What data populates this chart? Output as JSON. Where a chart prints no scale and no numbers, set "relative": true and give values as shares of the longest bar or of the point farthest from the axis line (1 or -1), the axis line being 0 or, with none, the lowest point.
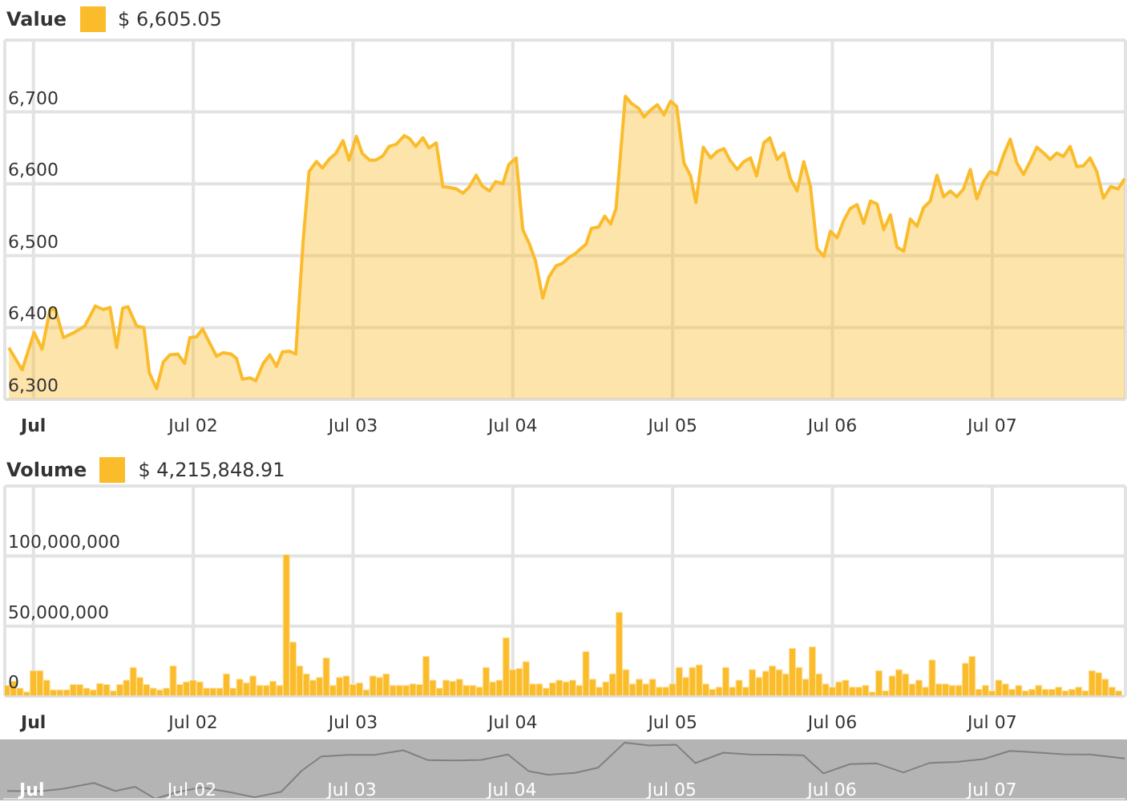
{
  "chart_data": [
    {
      "type": "area",
      "legend": "top left",
      "annotations": [
        "$ 6,605.05"
      ],
      "grid": true,
      "xlim": [
        "--06-30T19:42",
        "--07-07T20:00"
      ],
      "xticks": [
        {
          "value": "--07-01",
          "label": "Jul"
        },
        {
          "value": "--07-02",
          "label": "Jul 02"
        },
        {
          "value": "--07-03",
          "label": "Jul 03"
        },
        {
          "value": "--07-04",
          "label": "Jul 04"
        },
        {
          "value": "--07-05",
          "label": "Jul 05"
        },
        {
          "value": "--07-06",
          "label": "Jul 06"
        },
        {
          "value": "--07-07",
          "label": "Jul 07"
        }
      ],
      "ylim": [
        6300,
        6800
      ],
      "yticks": [
        {
          "value": 6300,
          "label": "6,300"
        },
        {
          "value": 6400,
          "label": "6,400"
        },
        {
          "value": 6500,
          "label": "6,500"
        },
        {
          "value": 6600,
          "label": "6,600"
        },
        {
          "value": 6700,
          "label": "6,700"
        }
      ],
      "x": [
        "--06-30T20:18",
        "--06-30T22:18",
        "--07-01T00:06",
        "--07-01T01:18",
        "--07-01T02:30",
        "--07-01T03:18",
        "--07-01T04:30",
        "--07-01T06:06",
        "--07-01T07:42",
        "--07-01T09:18",
        "--07-01T10:30",
        "--07-01T11:30",
        "--07-01T12:30",
        "--07-01T13:24",
        "--07-01T14:12",
        "--07-01T15:30",
        "--07-01T16:36",
        "--07-01T17:24",
        "--07-01T18:30",
        "--07-01T19:30",
        "--07-01T20:30",
        "--07-01T21:42",
        "--07-01T22:42",
        "--07-01T23:30",
        "--07-02T00:30",
        "--07-02T01:24",
        "--07-02T02:30",
        "--07-02T03:30",
        "--07-02T04:30",
        "--07-02T05:42",
        "--07-02T06:30",
        "--07-02T07:24",
        "--07-02T08:30",
        "--07-02T09:24",
        "--07-02T10:30",
        "--07-02T11:30",
        "--07-02T12:30",
        "--07-02T13:24",
        "--07-02T14:30",
        "--07-02T15:24",
        "--07-02T16:30",
        "--07-02T17:24",
        "--07-02T18:30",
        "--07-02T19:24",
        "--07-02T20:30",
        "--07-02T21:24",
        "--07-02T22:30",
        "--07-02T23:24",
        "--07-03T00:30",
        "--07-03T01:24",
        "--07-03T02:30",
        "--07-03T03:24",
        "--07-03T04:30",
        "--07-03T05:24",
        "--07-03T06:30",
        "--07-03T07:42",
        "--07-03T08:30",
        "--07-03T09:24",
        "--07-03T10:30",
        "--07-03T11:24",
        "--07-03T12:30",
        "--07-03T13:30",
        "--07-03T14:30",
        "--07-03T15:30",
        "--07-03T16:30",
        "--07-03T17:24",
        "--07-03T18:30",
        "--07-03T19:24",
        "--07-03T20:30",
        "--07-03T21:24",
        "--07-03T22:30",
        "--07-03T23:24",
        "--07-04T00:30",
        "--07-04T01:30",
        "--07-04T02:30",
        "--07-04T03:24",
        "--07-04T04:30",
        "--07-04T05:24",
        "--07-04T06:30",
        "--07-04T07:24",
        "--07-04T08:30",
        "--07-04T09:24",
        "--07-04T10:06",
        "--07-04T11:00",
        "--07-04T11:48",
        "--07-04T12:54",
        "--07-04T13:48",
        "--07-04T14:42",
        "--07-04T15:30",
        "--07-04T16:54",
        "--07-04T17:48",
        "--07-04T18:54",
        "--07-04T19:42",
        "--07-04T20:36",
        "--07-04T21:42",
        "--07-04T22:42",
        "--07-04T23:42",
        "--07-05T00:36",
        "--07-05T01:42",
        "--07-05T02:42",
        "--07-05T03:30",
        "--07-05T04:36",
        "--07-05T05:42",
        "--07-05T06:42",
        "--07-05T07:42",
        "--07-05T08:36",
        "--07-05T09:42",
        "--07-05T10:42",
        "--07-05T11:42",
        "--07-05T12:36",
        "--07-05T13:42",
        "--07-05T14:36",
        "--07-05T15:42",
        "--07-05T16:42",
        "--07-05T17:42",
        "--07-05T18:42",
        "--07-05T19:42",
        "--07-05T20:42",
        "--07-05T21:42",
        "--07-05T22:42",
        "--07-05T23:42",
        "--07-06T00:42",
        "--07-06T01:42",
        "--07-06T02:42",
        "--07-06T03:42",
        "--07-06T04:42",
        "--07-06T05:42",
        "--07-06T06:42",
        "--07-06T07:42",
        "--07-06T08:42",
        "--07-06T09:42",
        "--07-06T10:42",
        "--07-06T11:42",
        "--07-06T12:42",
        "--07-06T13:42",
        "--07-06T14:42",
        "--07-06T15:42",
        "--07-06T16:42",
        "--07-06T17:42",
        "--07-06T18:42",
        "--07-06T19:42",
        "--07-06T20:42",
        "--07-06T21:42",
        "--07-06T22:42",
        "--07-06T23:42",
        "--07-07T00:42",
        "--07-07T01:42",
        "--07-07T02:42",
        "--07-07T03:42",
        "--07-07T04:42",
        "--07-07T05:42",
        "--07-07T06:42",
        "--07-07T07:42",
        "--07-07T08:42",
        "--07-07T09:42",
        "--07-07T10:42",
        "--07-07T11:42",
        "--07-07T12:42",
        "--07-07T13:42",
        "--07-07T14:42",
        "--07-07T15:42",
        "--07-07T16:42",
        "--07-07T17:48",
        "--07-07T18:54",
        "--07-07T19:54"
      ],
      "series": [
        {
          "name": "Value",
          "color": "#fbbc2c",
          "values": [
            6372,
            6341,
            6393,
            6370,
            6425,
            6425,
            6386,
            6393,
            6402,
            6430,
            6425,
            6428,
            6372,
            6427,
            6429,
            6402,
            6400,
            6337,
            6315,
            6352,
            6362,
            6363,
            6350,
            6386,
            6387,
            6398,
            6378,
            6360,
            6365,
            6363,
            6357,
            6328,
            6330,
            6326,
            6350,
            6362,
            6346,
            6366,
            6367,
            6363,
            6520,
            6617,
            6631,
            6622,
            6635,
            6642,
            6660,
            6633,
            6666,
            6642,
            6633,
            6633,
            6639,
            6652,
            6655,
            6667,
            6663,
            6652,
            6664,
            6650,
            6657,
            6596,
            6595,
            6593,
            6587,
            6595,
            6612,
            6597,
            6590,
            6603,
            6600,
            6627,
            6636,
            6536,
            6516,
            6493,
            6441,
            6470,
            6486,
            6489,
            6498,
            6503,
            6509,
            6516,
            6538,
            6540,
            6555,
            6544,
            6566,
            6722,
            6712,
            6705,
            6693,
            6702,
            6710,
            6696,
            6715,
            6708,
            6629,
            6611,
            6574,
            6651,
            6636,
            6645,
            6649,
            6633,
            6620,
            6631,
            6636,
            6611,
            6657,
            6664,
            6634,
            6643,
            6607,
            6590,
            6631,
            6596,
            6510,
            6499,
            6534,
            6525,
            6549,
            6566,
            6571,
            6545,
            6576,
            6572,
            6536,
            6557,
            6512,
            6506,
            6551,
            6541,
            6567,
            6576,
            6612,
            6582,
            6590,
            6582,
            6593,
            6620,
            6579,
            6603,
            6617,
            6613,
            6640,
            6662,
            6629,
            6613,
            6631,
            6651,
            6643,
            6634,
            6643,
            6638,
            6652,
            6624,
            6625,
            6636,
            6617,
            6580,
            6596,
            6593,
            6607
          ]
        }
      ]
    },
    {
      "type": "bar",
      "legend": "top left",
      "annotations": [
        "$ 4,215,848.91"
      ],
      "grid": true,
      "xlim": [
        "--06-30T19:42",
        "--07-07T20:00"
      ],
      "xticks": [
        {
          "value": "--07-01",
          "label": "Jul"
        },
        {
          "value": "--07-02",
          "label": "Jul 02"
        },
        {
          "value": "--07-03",
          "label": "Jul 03"
        },
        {
          "value": "--07-04",
          "label": "Jul 04"
        },
        {
          "value": "--07-05",
          "label": "Jul 05"
        },
        {
          "value": "--07-06",
          "label": "Jul 06"
        },
        {
          "value": "--07-07",
          "label": "Jul 07"
        }
      ],
      "ylim": [
        0,
        150000000
      ],
      "yticks": [
        {
          "value": 0,
          "label": "0"
        },
        {
          "value": 50000000,
          "label": "50,000,000"
        },
        {
          "value": 100000000,
          "label": "100,000,000"
        }
      ],
      "x": [
        "--06-30T20:00",
        "--06-30T21:00",
        "--06-30T22:00",
        "--06-30T23:00",
        "--07-01T00:00",
        "--07-01T01:00",
        "--07-01T02:00",
        "--07-01T03:00",
        "--07-01T04:00",
        "--07-01T05:00",
        "--07-01T06:00",
        "--07-01T07:00",
        "--07-01T08:00",
        "--07-01T09:00",
        "--07-01T10:00",
        "--07-01T11:00",
        "--07-01T12:00",
        "--07-01T13:00",
        "--07-01T14:00",
        "--07-01T15:00",
        "--07-01T16:00",
        "--07-01T17:00",
        "--07-01T18:00",
        "--07-01T19:00",
        "--07-01T20:00",
        "--07-01T21:00",
        "--07-01T22:00",
        "--07-01T23:00",
        "--07-02T00:00",
        "--07-02T01:00",
        "--07-02T02:00",
        "--07-02T03:00",
        "--07-02T04:00",
        "--07-02T05:00",
        "--07-02T06:00",
        "--07-02T07:00",
        "--07-02T08:00",
        "--07-02T09:00",
        "--07-02T10:00",
        "--07-02T11:00",
        "--07-02T12:00",
        "--07-02T13:00",
        "--07-02T14:00",
        "--07-02T15:00",
        "--07-02T16:00",
        "--07-02T17:00",
        "--07-02T18:00",
        "--07-02T19:00",
        "--07-02T20:00",
        "--07-02T21:00",
        "--07-02T22:00",
        "--07-02T23:00",
        "--07-03T00:00",
        "--07-03T01:00",
        "--07-03T02:00",
        "--07-03T03:00",
        "--07-03T04:00",
        "--07-03T05:00",
        "--07-03T06:00",
        "--07-03T07:00",
        "--07-03T08:00",
        "--07-03T09:00",
        "--07-03T10:00",
        "--07-03T11:00",
        "--07-03T12:00",
        "--07-03T13:00",
        "--07-03T14:00",
        "--07-03T15:00",
        "--07-03T16:00",
        "--07-03T17:00",
        "--07-03T18:00",
        "--07-03T19:00",
        "--07-03T20:00",
        "--07-03T21:00",
        "--07-03T22:00",
        "--07-03T23:00",
        "--07-04T00:00",
        "--07-04T01:00",
        "--07-04T02:00",
        "--07-04T03:00",
        "--07-04T04:00",
        "--07-04T05:00",
        "--07-04T06:00",
        "--07-04T07:00",
        "--07-04T08:00",
        "--07-04T09:00",
        "--07-04T10:00",
        "--07-04T11:00",
        "--07-04T12:00",
        "--07-04T13:00",
        "--07-04T14:00",
        "--07-04T15:00",
        "--07-04T16:00",
        "--07-04T17:00",
        "--07-04T18:00",
        "--07-04T19:00",
        "--07-04T20:00",
        "--07-04T21:00",
        "--07-04T22:00",
        "--07-04T23:00",
        "--07-05T00:00",
        "--07-05T01:00",
        "--07-05T02:00",
        "--07-05T03:00",
        "--07-05T04:00",
        "--07-05T05:00",
        "--07-05T06:00",
        "--07-05T07:00",
        "--07-05T08:00",
        "--07-05T09:00",
        "--07-05T10:00",
        "--07-05T11:00",
        "--07-05T12:00",
        "--07-05T13:00",
        "--07-05T14:00",
        "--07-05T15:00",
        "--07-05T16:00",
        "--07-05T17:00",
        "--07-05T18:00",
        "--07-05T19:00",
        "--07-05T20:00",
        "--07-05T21:00",
        "--07-05T22:00",
        "--07-05T23:00",
        "--07-06T00:00",
        "--07-06T01:00",
        "--07-06T02:00",
        "--07-06T03:00",
        "--07-06T04:00",
        "--07-06T05:00",
        "--07-06T06:00",
        "--07-06T07:00",
        "--07-06T08:00",
        "--07-06T09:00",
        "--07-06T10:00",
        "--07-06T11:00",
        "--07-06T12:00",
        "--07-06T13:00",
        "--07-06T14:00",
        "--07-06T15:00",
        "--07-06T16:00",
        "--07-06T17:00",
        "--07-06T18:00",
        "--07-06T19:00",
        "--07-06T20:00",
        "--07-06T21:00",
        "--07-06T22:00",
        "--07-06T23:00",
        "--07-07T00:00",
        "--07-07T01:00",
        "--07-07T02:00",
        "--07-07T03:00",
        "--07-07T04:00",
        "--07-07T05:00",
        "--07-07T06:00",
        "--07-07T07:00",
        "--07-07T08:00",
        "--07-07T09:00",
        "--07-07T10:00",
        "--07-07T11:00",
        "--07-07T12:00",
        "--07-07T13:00",
        "--07-07T14:00",
        "--07-07T15:00",
        "--07-07T16:00",
        "--07-07T17:00",
        "--07-07T18:00",
        "--07-07T19:00"
      ],
      "series": [
        {
          "name": "Volume",
          "color": "#fbbc2c",
          "values": [
            7600000,
            10600000,
            5700000,
            3000000,
            18200000,
            18200000,
            11400000,
            4500000,
            4500000,
            4500000,
            8300000,
            8300000,
            5700000,
            4500000,
            9100000,
            8300000,
            3800000,
            8300000,
            11400000,
            20500000,
            13300000,
            8300000,
            5700000,
            4500000,
            5700000,
            21600000,
            8300000,
            10200000,
            11400000,
            10200000,
            5700000,
            5700000,
            5700000,
            15900000,
            5700000,
            12100000,
            9500000,
            14400000,
            7600000,
            7600000,
            10600000,
            7600000,
            101000000,
            38600000,
            21600000,
            15900000,
            11400000,
            13300000,
            27300000,
            7600000,
            13300000,
            14400000,
            8300000,
            9500000,
            4500000,
            14400000,
            13300000,
            15900000,
            7600000,
            7600000,
            7600000,
            8700000,
            8300000,
            28400000,
            11400000,
            5700000,
            11400000,
            10600000,
            12100000,
            7600000,
            7600000,
            6400000,
            20500000,
            10200000,
            11400000,
            41700000,
            18900000,
            19700000,
            24600000,
            8700000,
            8700000,
            5700000,
            9500000,
            11400000,
            10200000,
            11400000,
            7600000,
            31800000,
            12100000,
            6400000,
            10200000,
            15900000,
            59800000,
            18900000,
            8700000,
            12100000,
            8700000,
            12100000,
            6400000,
            6400000,
            8700000,
            20500000,
            13300000,
            20500000,
            22300000,
            8700000,
            4900000,
            6400000,
            20500000,
            6400000,
            11400000,
            6400000,
            18900000,
            13300000,
            17800000,
            21600000,
            18900000,
            15900000,
            34100000,
            20500000,
            12100000,
            35200000,
            15900000,
            8700000,
            6400000,
            10200000,
            11400000,
            6400000,
            6400000,
            7600000,
            3000000,
            18200000,
            3800000,
            14400000,
            18900000,
            15900000,
            8700000,
            11400000,
            6400000,
            25800000,
            8700000,
            8700000,
            7600000,
            7600000,
            23500000,
            28400000,
            4900000,
            7600000,
            3800000,
            11400000,
            8700000,
            4900000,
            7600000,
            3800000,
            4900000,
            7600000,
            4900000,
            4900000,
            6400000,
            3800000,
            4900000,
            6400000,
            3800000,
            18200000,
            16700000,
            12100000,
            6400000,
            3800000
          ]
        }
      ]
    },
    {
      "type": "line",
      "relative": true,
      "xlim": [
        "--06-30T19:42",
        "--07-07T20:00"
      ],
      "xticks": [
        {
          "value": "--07-01",
          "label": "Jul"
        },
        {
          "value": "--07-02",
          "label": "Jul 02"
        },
        {
          "value": "--07-03",
          "label": "Jul 03"
        },
        {
          "value": "--07-04",
          "label": "Jul 04"
        },
        {
          "value": "--07-05",
          "label": "Jul 05"
        },
        {
          "value": "--07-06",
          "label": "Jul 06"
        },
        {
          "value": "--07-07",
          "label": "Jul 07"
        }
      ],
      "x": [
        "--06-30T20:18",
        "--07-01T01:18",
        "--07-01T04:30",
        "--07-01T09:18",
        "--07-01T12:30",
        "--07-01T15:30",
        "--07-01T18:30",
        "--07-01T21:42",
        "--07-02T01:24",
        "--07-02T05:42",
        "--07-02T09:24",
        "--07-02T13:24",
        "--07-02T16:30",
        "--07-02T19:24",
        "--07-02T23:24",
        "--07-03T03:24",
        "--07-03T07:42",
        "--07-03T11:24",
        "--07-03T15:30",
        "--07-03T19:24",
        "--07-03T23:24",
        "--07-04T02:30",
        "--07-04T05:24",
        "--07-04T09:24",
        "--07-04T12:54",
        "--07-04T16:54",
        "--07-04T20:36",
        "--07-05T00:36",
        "--07-05T03:30",
        "--07-05T07:42",
        "--07-05T11:42",
        "--07-05T15:42",
        "--07-05T19:42",
        "--07-05T22:42",
        "--07-06T02:42",
        "--07-06T06:42",
        "--07-06T10:42",
        "--07-06T14:42",
        "--07-06T18:42",
        "--07-06T22:42",
        "--07-07T02:42",
        "--07-07T06:42",
        "--07-07T10:42",
        "--07-07T14:42",
        "--07-07T19:54"
      ],
      "series": [
        {
          "color": "#808080",
          "values": [
            0.14,
            0.135,
            0.174,
            0.283,
            0.14,
            0.214,
            0,
            0.118,
            0.204,
            0.118,
            0.027,
            0.125,
            0.504,
            0.754,
            0.781,
            0.781,
            0.865,
            0.688,
            0.683,
            0.693,
            0.789,
            0.494,
            0.428,
            0.462,
            0.553,
            1,
            0.951,
            0.966,
            0.636,
            0.821,
            0.789,
            0.784,
            0.776,
            0.452,
            0.617,
            0.631,
            0.469,
            0.641,
            0.656,
            0.708,
            0.853,
            0.826,
            0.794,
            0.789,
            0.717
          ]
        }
      ]
    }
  ]
}
